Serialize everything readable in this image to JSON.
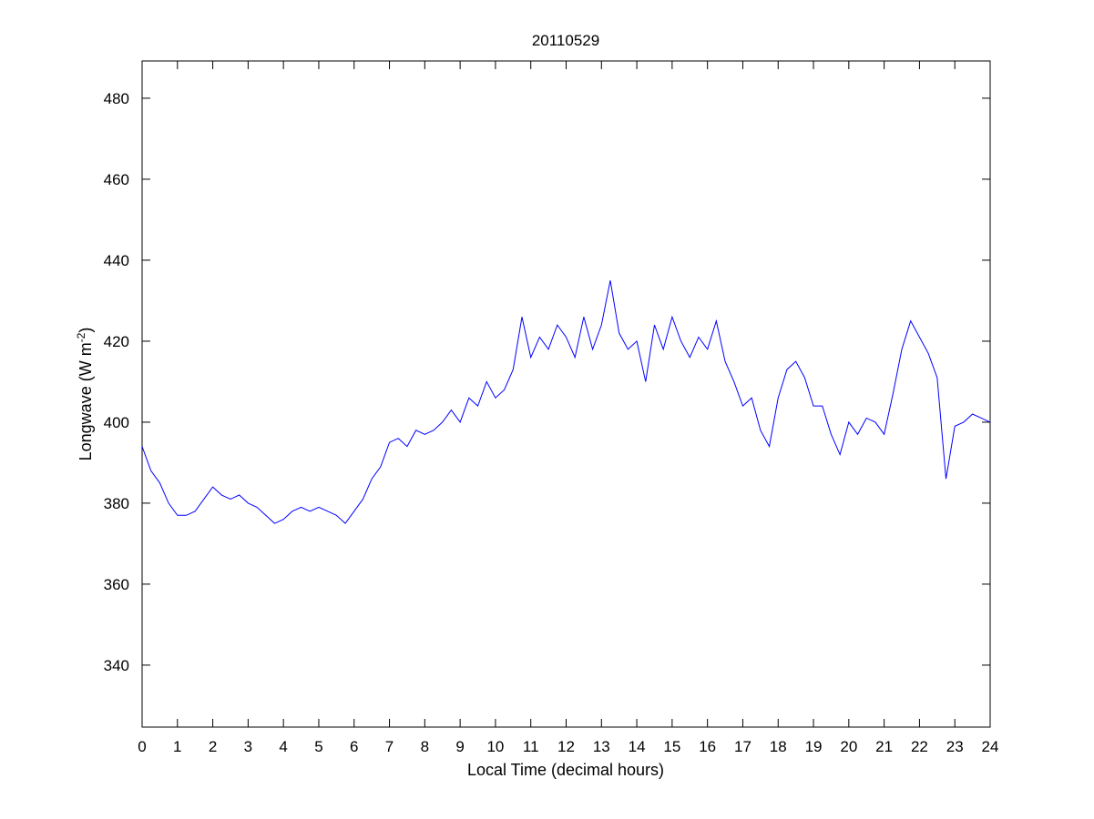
{
  "chart_data": {
    "type": "line",
    "title": "20110529",
    "x_label": "Local Time (decimal hours)",
    "y_label": [
      "Longwave (W m",
      "-2",
      ")"
    ],
    "x": [
      0,
      0.25,
      0.5,
      0.75,
      1,
      1.25,
      1.5,
      1.75,
      2,
      2.25,
      2.5,
      2.75,
      3,
      3.25,
      3.5,
      3.75,
      4,
      4.25,
      4.5,
      4.75,
      5,
      5.25,
      5.5,
      5.75,
      6,
      6.25,
      6.5,
      6.75,
      7,
      7.25,
      7.5,
      7.75,
      8,
      8.25,
      8.5,
      8.75,
      9,
      9.25,
      9.5,
      9.75,
      10,
      10.25,
      10.5,
      10.75,
      11,
      11.25,
      11.5,
      11.75,
      12,
      12.25,
      12.5,
      12.75,
      13,
      13.25,
      13.5,
      13.75,
      14,
      14.25,
      14.5,
      14.75,
      15,
      15.25,
      15.5,
      15.75,
      16,
      16.25,
      16.5,
      16.75,
      17,
      17.25,
      17.5,
      17.75,
      18,
      18.25,
      18.5,
      18.75,
      19,
      19.25,
      19.5,
      19.75,
      20,
      20.25,
      20.5,
      20.75,
      21,
      21.25,
      21.5,
      21.75,
      22,
      22.25,
      22.5,
      22.75,
      23,
      23.25,
      23.5,
      23.75,
      24
    ],
    "series": [
      {
        "color": "#0000ff",
        "values": [
          394,
          388,
          385,
          380,
          377,
          377,
          378,
          381,
          384,
          382,
          381,
          382,
          380,
          379,
          377,
          375,
          376,
          378,
          379,
          378,
          379,
          378,
          377,
          375,
          378,
          381,
          386,
          389,
          395,
          396,
          394,
          398,
          397,
          398,
          400,
          403,
          400,
          406,
          404,
          410,
          406,
          408,
          413,
          426,
          416,
          421,
          418,
          424,
          421,
          416,
          426,
          418,
          424,
          435,
          422,
          418,
          420,
          410,
          424,
          418,
          426,
          420,
          416,
          421,
          418,
          425,
          415,
          410,
          404,
          406,
          398,
          394,
          406,
          413,
          415,
          411,
          404,
          404,
          397,
          392,
          400,
          397,
          401,
          400,
          397,
          407,
          418,
          425,
          421,
          417,
          411,
          386,
          399,
          400,
          402,
          401,
          400
        ]
      }
    ],
    "xlim": [
      0,
      24
    ],
    "xticks": [
      0,
      1,
      2,
      3,
      4,
      5,
      6,
      7,
      8,
      9,
      10,
      11,
      12,
      13,
      14,
      15,
      16,
      17,
      18,
      19,
      20,
      21,
      22,
      23,
      24
    ],
    "ylim": [
      324.7,
      489.2
    ],
    "yticks": [
      340,
      360,
      380,
      400,
      420,
      440,
      460,
      480
    ]
  }
}
